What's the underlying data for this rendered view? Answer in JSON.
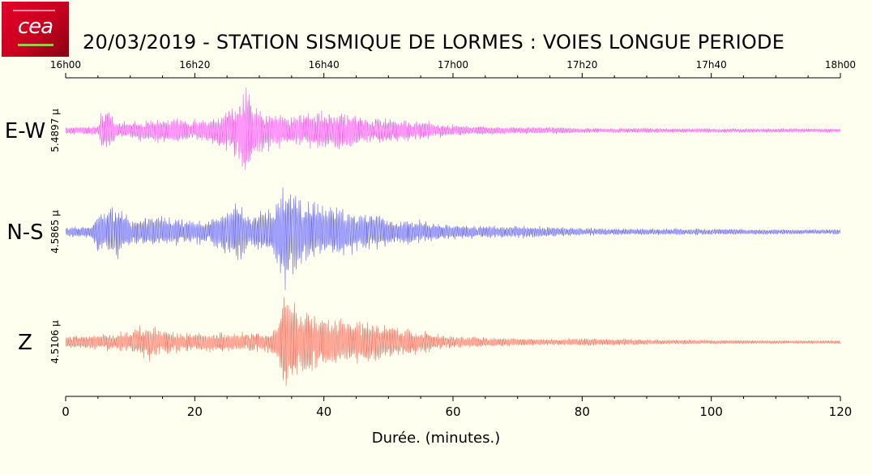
{
  "header": {
    "title": "20/03/2019  -  STATION SISMIQUE DE LORMES : VOIES LONGUE PERIODE",
    "logo_text": "cea"
  },
  "chart_data": {
    "type": "line",
    "title": "20/03/2019  -  STATION SISMIQUE DE LORMES : VOIES LONGUE PERIODE",
    "xlabel": "Durée.  (minutes.)",
    "xlim": [
      0,
      120
    ],
    "x_ticks": [
      0,
      20,
      40,
      60,
      80,
      100,
      120
    ],
    "x_tick_labels": [
      "0",
      "20",
      "40",
      "60",
      "80",
      "100",
      "120"
    ],
    "top_axis_ticks": [
      0,
      20,
      40,
      60,
      80,
      100,
      120
    ],
    "top_axis_labels": [
      "16h00",
      "16h20",
      "16h40",
      "17h00",
      "17h20",
      "17h40",
      "18h00"
    ],
    "grid": false,
    "series": [
      {
        "name": "E-W",
        "amplitude_label": "5.4897 µ",
        "color": "#ff33ff",
        "envelope": {
          "x": [
            0,
            5,
            5.5,
            6.5,
            8,
            10,
            14,
            18,
            22,
            24,
            25,
            26,
            27,
            28,
            29,
            30,
            32,
            35,
            38,
            40,
            43,
            45,
            48,
            50,
            55,
            58,
            60,
            65,
            70,
            75,
            80,
            90,
            100,
            110,
            120
          ],
          "y": [
            0.07,
            0.08,
            0.35,
            0.4,
            0.14,
            0.15,
            0.22,
            0.2,
            0.18,
            0.3,
            0.38,
            0.45,
            0.65,
            1.0,
            0.45,
            0.4,
            0.3,
            0.25,
            0.32,
            0.3,
            0.35,
            0.28,
            0.22,
            0.2,
            0.18,
            0.12,
            0.09,
            0.07,
            0.06,
            0.06,
            0.04,
            0.04,
            0.035,
            0.035,
            0.03
          ]
        }
      },
      {
        "name": "N-S",
        "amplitude_label": "4.5865 µ",
        "color": "#4444ff",
        "envelope": {
          "x": [
            0,
            4,
            5,
            6,
            8,
            10,
            14,
            18,
            22,
            26,
            27,
            28,
            30,
            32,
            33,
            34,
            35,
            36,
            38,
            40,
            43,
            45,
            48,
            50,
            55,
            60,
            65,
            70,
            75,
            80,
            90,
            100,
            110,
            120
          ],
          "y": [
            0.08,
            0.1,
            0.35,
            0.3,
            0.45,
            0.2,
            0.25,
            0.2,
            0.18,
            0.4,
            0.55,
            0.3,
            0.3,
            0.35,
            0.6,
            1.0,
            0.75,
            0.55,
            0.5,
            0.42,
            0.38,
            0.32,
            0.3,
            0.22,
            0.18,
            0.12,
            0.1,
            0.1,
            0.08,
            0.06,
            0.05,
            0.05,
            0.04,
            0.04
          ]
        }
      },
      {
        "name": "Z",
        "amplitude_label": "4.5106 µ",
        "color": "#ff5544",
        "envelope": {
          "x": [
            0,
            5,
            10,
            13,
            15,
            20,
            25,
            30,
            32,
            33,
            34,
            35,
            36,
            38,
            40,
            42,
            45,
            48,
            50,
            53,
            55,
            58,
            60,
            65,
            70,
            75,
            80,
            85,
            90,
            100,
            110,
            120
          ],
          "y": [
            0.12,
            0.14,
            0.22,
            0.35,
            0.22,
            0.18,
            0.18,
            0.2,
            0.25,
            0.5,
            1.0,
            0.9,
            0.7,
            0.6,
            0.5,
            0.42,
            0.45,
            0.38,
            0.3,
            0.28,
            0.22,
            0.15,
            0.12,
            0.1,
            0.08,
            0.06,
            0.07,
            0.07,
            0.05,
            0.04,
            0.03,
            0.03
          ]
        }
      }
    ]
  }
}
